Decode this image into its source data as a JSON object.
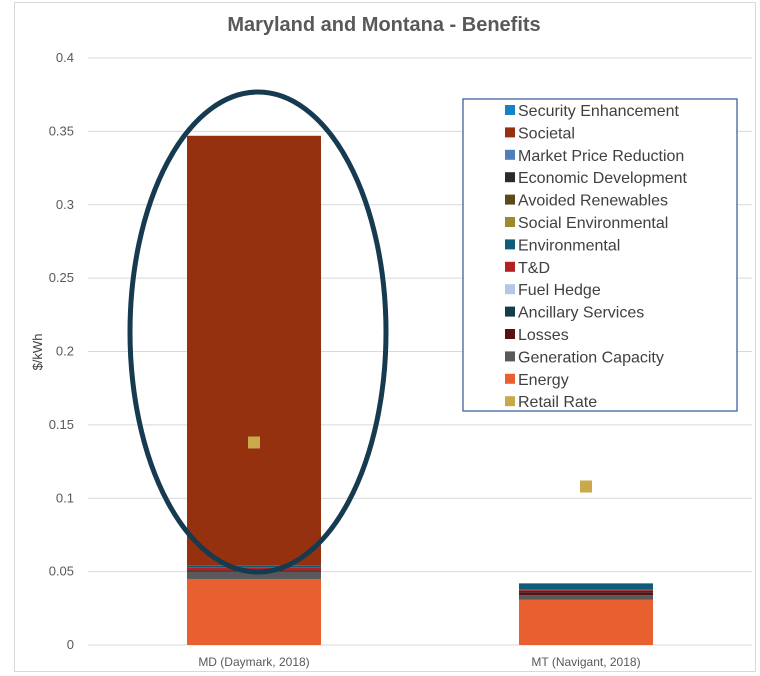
{
  "chart_data": {
    "type": "bar",
    "stacked": true,
    "title": "Maryland and Montana - Benefits",
    "xlabel": "",
    "ylabel": "$/kWh",
    "ylim": [
      0,
      0.4
    ],
    "yticks": [
      "0",
      "0.05",
      "0.1",
      "0.15",
      "0.2",
      "0.25",
      "0.3",
      "0.35",
      "0.4"
    ],
    "grid": true,
    "legend_position": "top-right",
    "categories": [
      "MD (Daymark, 2018)",
      "MT (Navigant, 2018)"
    ],
    "series": [
      {
        "name": "Energy",
        "color": "#e8602f",
        "values": [
          0.045,
          0.031
        ]
      },
      {
        "name": "Generation Capacity",
        "color": "#595959",
        "values": [
          0.005,
          0.003
        ]
      },
      {
        "name": "Losses",
        "color": "#5a1010",
        "values": [
          0.001,
          0.002
        ]
      },
      {
        "name": "Ancillary Services",
        "color": "#123b4c",
        "values": [
          0.0,
          0.001
        ]
      },
      {
        "name": "Fuel Hedge",
        "color": "#b4c7e7",
        "values": [
          0.0,
          0.0
        ]
      },
      {
        "name": "T&D",
        "color": "#b22222",
        "values": [
          0.002,
          0.001
        ]
      },
      {
        "name": "Environmental",
        "color": "#0f5c7a",
        "values": [
          0.001,
          0.004
        ]
      },
      {
        "name": "Social Environmental",
        "color": "#9c8a2e",
        "values": [
          0.0,
          0.0
        ]
      },
      {
        "name": "Avoided Renewables",
        "color": "#5c4a1a",
        "values": [
          0.0,
          0.0
        ]
      },
      {
        "name": "Economic Development",
        "color": "#2b2b2b",
        "values": [
          0.0,
          0.0
        ]
      },
      {
        "name": "Market Price Reduction",
        "color": "#4e7fb8",
        "values": [
          0.0,
          0.0
        ]
      },
      {
        "name": "Societal",
        "color": "#96310f",
        "values": [
          0.293,
          0.0
        ]
      },
      {
        "name": "Security Enhancement",
        "color": "#1483c4",
        "values": [
          0.0,
          0.0
        ]
      }
    ],
    "markers": {
      "name": "Retail Rate",
      "color": "#c9a94a",
      "values": [
        0.138,
        0.108
      ]
    },
    "legend_order": [
      "Security Enhancement",
      "Societal",
      "Market Price Reduction",
      "Economic Development",
      "Avoided Renewables",
      "Social Environmental",
      "Environmental",
      "T&D",
      "Fuel Hedge",
      "Ancillary Services",
      "Losses",
      "Generation Capacity",
      "Energy",
      "Retail Rate"
    ],
    "annotation": {
      "shape": "ellipse",
      "color": "#163a4f",
      "target": "MD (Daymark, 2018)"
    }
  }
}
